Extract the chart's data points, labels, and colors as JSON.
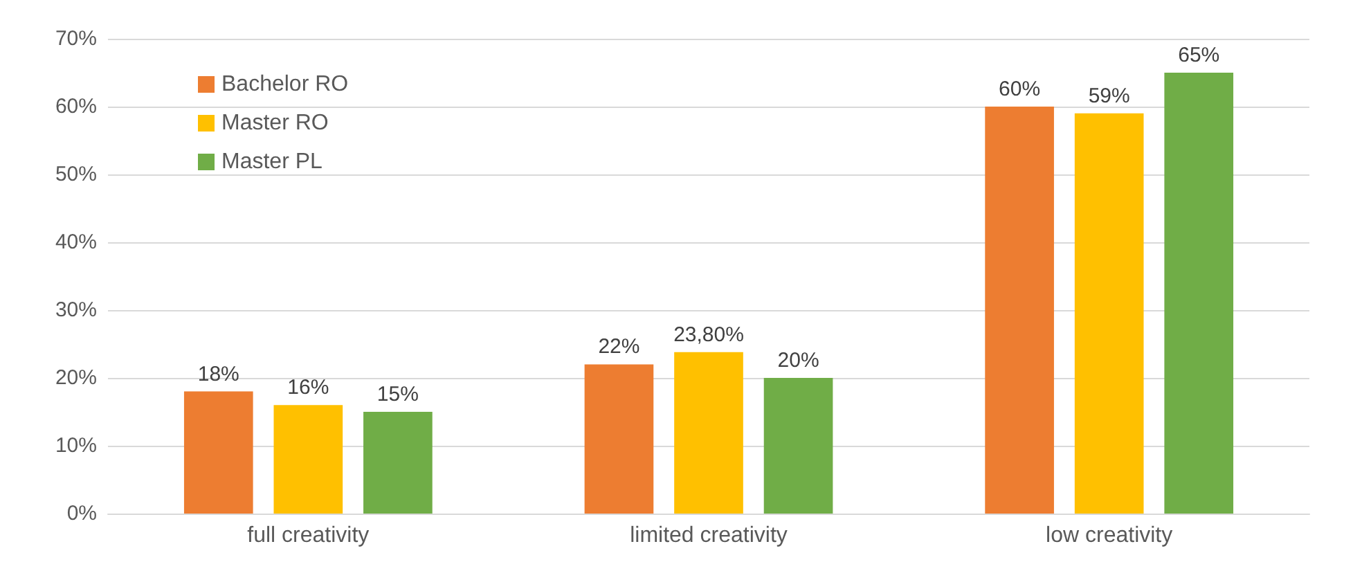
{
  "chart_data": {
    "type": "bar",
    "categories": [
      "full creativity",
      "limited creativity",
      "low creativity"
    ],
    "series": [
      {
        "name": "Bachelor RO",
        "color": "#ed7d31",
        "values": [
          18,
          22,
          60
        ],
        "value_labels": [
          "18%",
          "22%",
          "60%"
        ]
      },
      {
        "name": "Master RO",
        "color": "#ffc000",
        "values": [
          16,
          23.8,
          59
        ],
        "value_labels": [
          "16%",
          "23,80%",
          "59%"
        ]
      },
      {
        "name": "Master PL",
        "color": "#70ad47",
        "values": [
          15,
          20,
          65
        ],
        "value_labels": [
          "15%",
          "20%",
          "65%"
        ]
      }
    ],
    "ylim": [
      0,
      70
    ],
    "yticks": [
      {
        "value": 0,
        "label": "0%"
      },
      {
        "value": 10,
        "label": "10%"
      },
      {
        "value": 20,
        "label": "20%"
      },
      {
        "value": 30,
        "label": "30%"
      },
      {
        "value": 40,
        "label": "40%"
      },
      {
        "value": 50,
        "label": "50%"
      },
      {
        "value": 60,
        "label": "60%"
      },
      {
        "value": 70,
        "label": "70%"
      }
    ],
    "grid": "y",
    "legend": "top left"
  }
}
